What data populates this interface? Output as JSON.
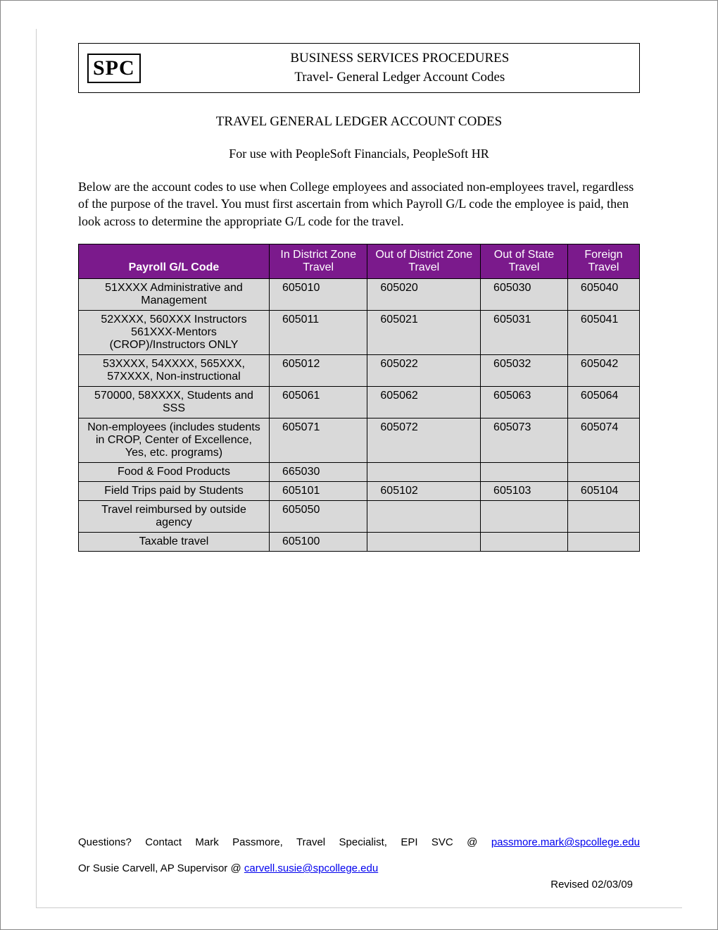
{
  "header": {
    "logo_text": "SPC",
    "line1": "BUSINESS SERVICES PROCEDURES",
    "line2": "Travel- General Ledger Account Codes"
  },
  "title": "TRAVEL GENERAL LEDGER ACCOUNT CODES",
  "subtitle": "For use with PeopleSoft Financials, PeopleSoft HR",
  "intro": "Below are the account codes to use when College employees and associated non-employees travel, regardless of the purpose of the travel.  You must first ascertain from which Payroll G/L code the employee is paid, then look across to determine the appropriate G/L code for the travel.",
  "table": {
    "header_bg": "#7b1a8c",
    "header_fg": "#ffffff",
    "row_bg": "#d9d9d9",
    "columns": [
      "Payroll G/L Code",
      "In District Zone Travel",
      "Out of District Zone Travel",
      "Out of State Travel",
      "Foreign Travel"
    ],
    "rows": [
      {
        "label": "51XXXX Administrative and Management",
        "c1": "605010",
        "c2": "605020",
        "c3": "605030",
        "c4": "605040",
        "cls": "row-tall"
      },
      {
        "label": "52XXXX, 560XXX Instructors 561XXX-Mentors (CROP)/Instructors ONLY",
        "c1": "605011",
        "c2": "605021",
        "c3": "605031",
        "c4": "605041",
        "cls": "row-tall"
      },
      {
        "label": "53XXXX, 54XXXX, 565XXX, 57XXXX, Non-instructional",
        "c1": "605012",
        "c2": "605022",
        "c3": "605032",
        "c4": "605042",
        "cls": ""
      },
      {
        "label": "570000, 58XXXX, Students and SSS",
        "c1": "605061",
        "c2": "605062",
        "c3": "605063",
        "c4": "605064",
        "cls": ""
      },
      {
        "label": "Non-employees (includes students in CROP, Center of Excellence, Yes, etc. programs)",
        "c1": "605071",
        "c2": "605072",
        "c3": "605073",
        "c4": "605074",
        "cls": ""
      },
      {
        "label": "Food & Food Products",
        "c1": "665030",
        "c2": "",
        "c3": "",
        "c4": "",
        "cls": "row-med"
      },
      {
        "label": "Field Trips paid by Students",
        "c1": "605101",
        "c2": "605102",
        "c3": "605103",
        "c4": "605104",
        "cls": "row-med"
      },
      {
        "label": "Travel reimbursed by outside agency",
        "c1": "605050",
        "c2": "",
        "c3": "",
        "c4": "",
        "cls": ""
      },
      {
        "label": "Taxable travel",
        "c1": "605100",
        "c2": "",
        "c3": "",
        "c4": "",
        "cls": "row-med"
      }
    ]
  },
  "footer": {
    "q_prefix": "Questions? Contact Mark Passmore, Travel Specialist, EPI SVC @ ",
    "email1": "passmore.mark@spcollege.edu",
    "or_prefix": "Or Susie Carvell, AP Supervisor @ ",
    "email2": "carvell.susie@spcollege.edu",
    "revised": "Revised 02/03/09"
  }
}
